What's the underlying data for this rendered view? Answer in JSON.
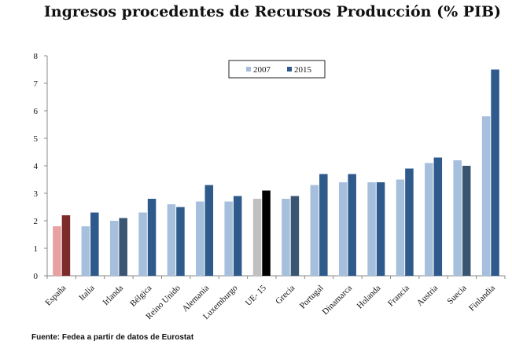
{
  "chart_data": {
    "type": "bar",
    "title": "Ingresos procedentes de Recursos Producción (% PIB)",
    "source": "Fuente: Fedea a partir de datos de Eurostat",
    "categories": [
      "España",
      "Italia",
      "Irlanda",
      "Bélgica",
      "Reino Unido",
      "Alemania",
      "Luxemburgo",
      "UE- 15",
      "Grecia",
      "Portugal",
      "Dinamarca",
      "Holanda",
      "Francia",
      "Austria",
      "Suecia",
      "Finlandia"
    ],
    "series": [
      {
        "name": "2007",
        "values": [
          1.8,
          1.8,
          2.0,
          2.3,
          2.6,
          2.7,
          2.7,
          2.8,
          2.8,
          3.3,
          3.4,
          3.4,
          3.5,
          4.1,
          4.2,
          5.8
        ]
      },
      {
        "name": "2015",
        "values": [
          2.2,
          2.3,
          2.1,
          2.8,
          2.5,
          3.3,
          2.9,
          3.1,
          2.9,
          3.7,
          3.7,
          3.4,
          3.9,
          4.3,
          4.0,
          7.5
        ]
      }
    ],
    "ylim": [
      0,
      8
    ],
    "yticks": [
      "0",
      "1",
      "2",
      "3",
      "4",
      "5",
      "6",
      "7",
      "8"
    ],
    "legend_position": "top-center",
    "colors": {
      "s2007": "#a6bfdc",
      "s2015": "#2e5a8c",
      "s2007_espana": "#e8a0a0",
      "s2015_espana": "#7d2a2a",
      "s2007_ue15": "#c0c0c0",
      "s2015_ue15": "#000000",
      "s2015_dark": "#3a5572"
    },
    "highlight": {
      "España": [
        "s2007_espana",
        "s2015_espana"
      ],
      "UE- 15": [
        "s2007_ue15",
        "s2015_ue15"
      ],
      "Irlanda": [
        "s2007",
        "s2015_dark"
      ],
      "Grecia": [
        "s2007",
        "s2015_dark"
      ],
      "Suecia": [
        "s2007",
        "s2015_dark"
      ]
    }
  }
}
